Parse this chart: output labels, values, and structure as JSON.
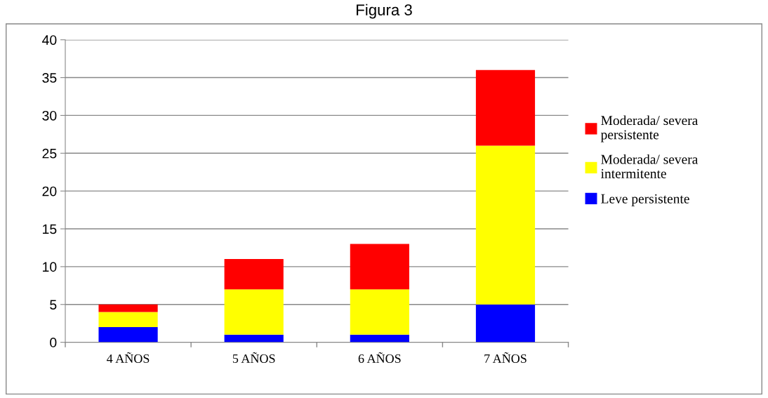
{
  "chart_data": {
    "type": "bar",
    "title": "Figura 3",
    "stacked": true,
    "categories": [
      "4 AÑOS",
      "5 AÑOS",
      "6 AÑOS",
      "7 AÑOS"
    ],
    "series": [
      {
        "name": "Leve persistente",
        "color": "#0000ff",
        "values": [
          2,
          1,
          1,
          5
        ]
      },
      {
        "name": "Moderada/ severa intermitente",
        "color": "#ffff00",
        "values": [
          2,
          6,
          6,
          21
        ]
      },
      {
        "name": "Moderada/ severa persistente",
        "color": "#ff0000",
        "values": [
          1,
          4,
          6,
          10
        ]
      }
    ],
    "ylim": [
      0,
      40
    ],
    "yticks": [
      0,
      5,
      10,
      15,
      20,
      25,
      30,
      35,
      40
    ],
    "grid": "y",
    "legend": "right"
  }
}
